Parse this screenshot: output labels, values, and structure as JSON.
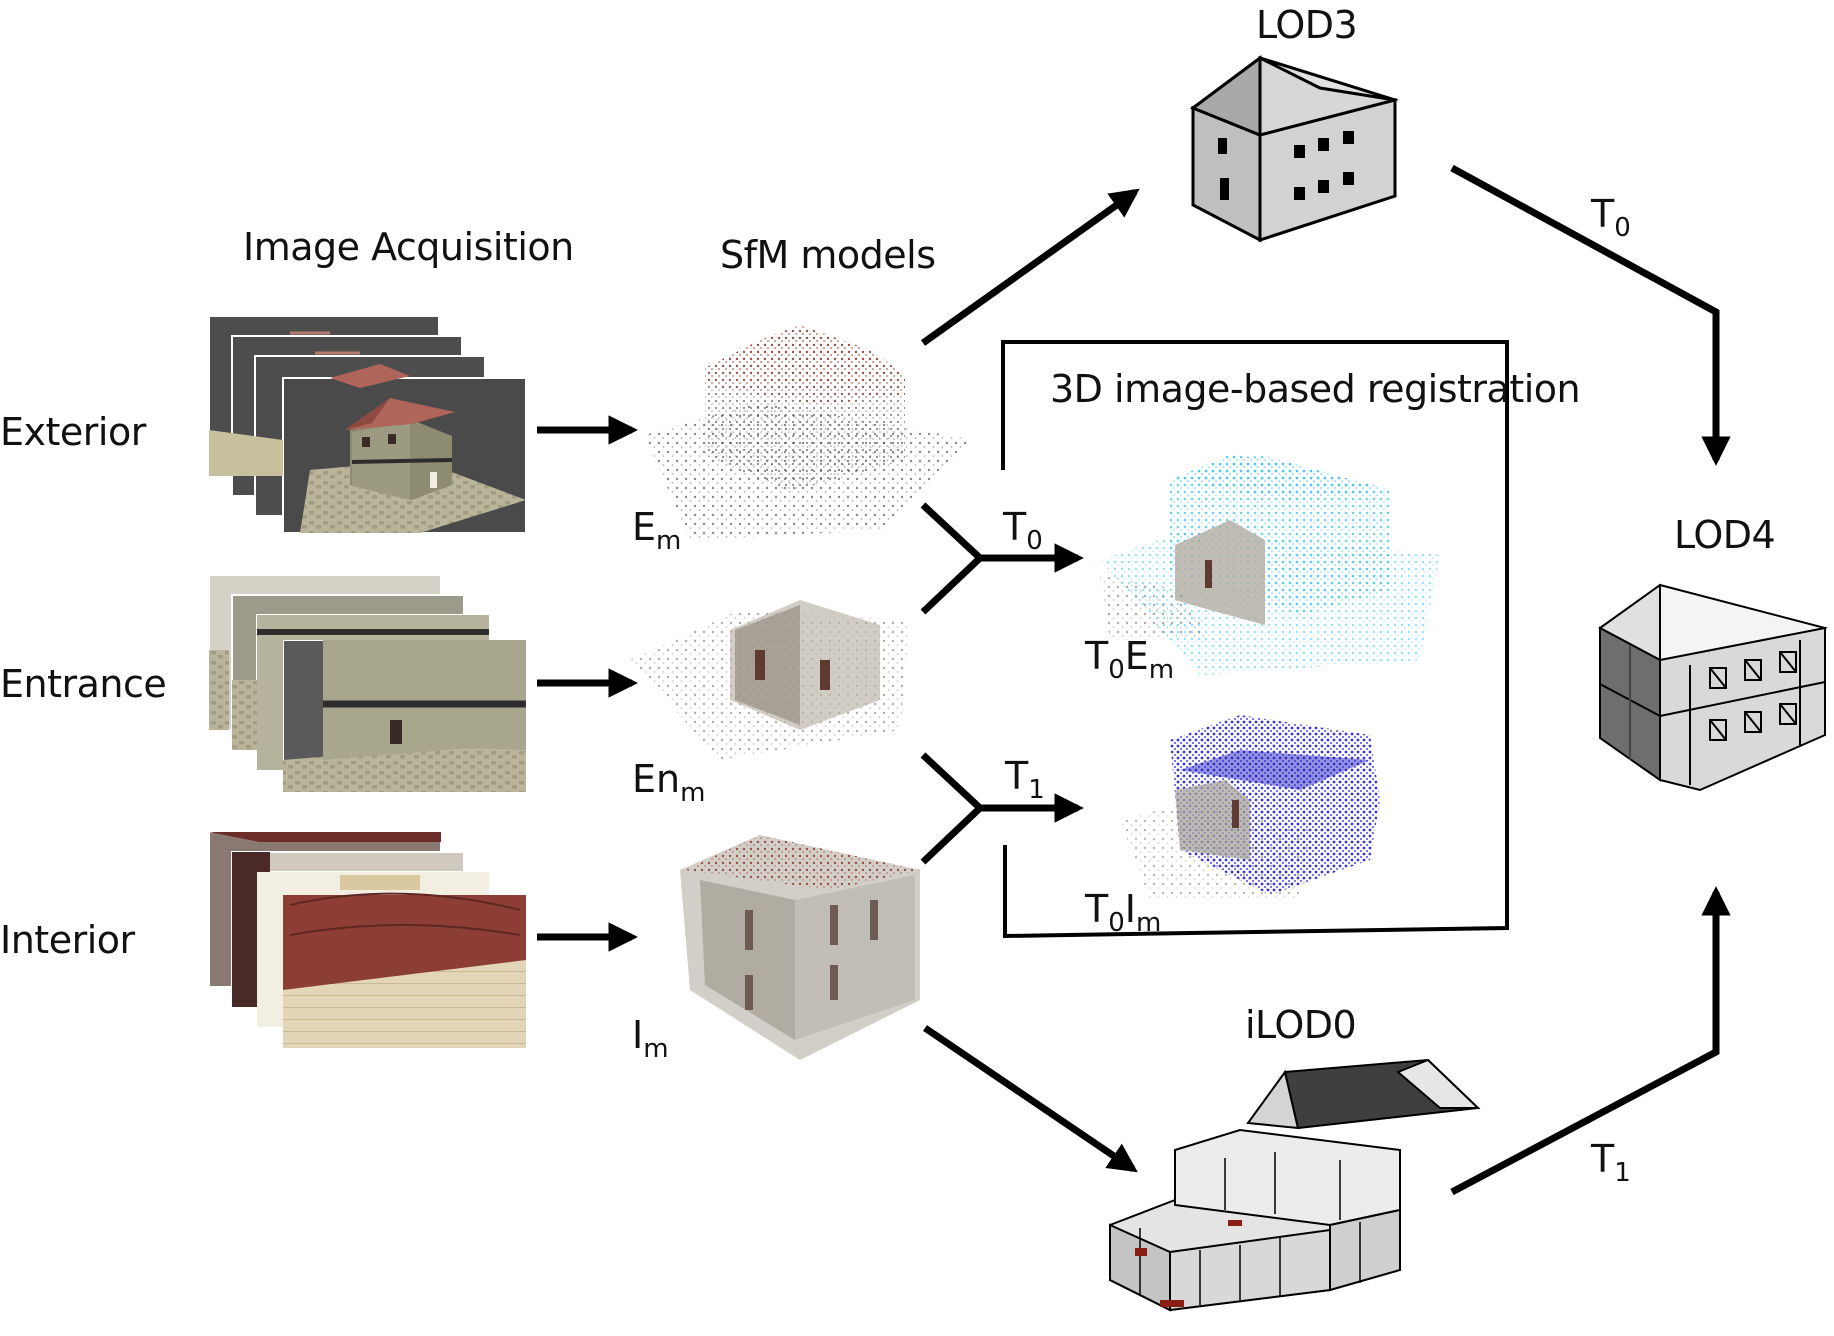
{
  "headings": {
    "image_acquisition": "Image Acquisition",
    "sfm_models": "SfM models",
    "registration": "3D image-based registration",
    "lod3": "LOD3",
    "lod4": "LOD4",
    "ilod0": "iLOD0"
  },
  "rows": {
    "exterior": "Exterior",
    "entrance": "Entrance",
    "interior": "Interior"
  },
  "models": {
    "em": {
      "base": "E",
      "sub": "m"
    },
    "enm": {
      "base": "En",
      "sub": "m"
    },
    "im": {
      "base": "I",
      "sub": "m"
    },
    "t0em_a": {
      "base": "T",
      "sub": "0"
    },
    "t0em_b": {
      "base": "E",
      "sub": "m"
    },
    "t0im_a": {
      "base": "T",
      "sub": "0"
    },
    "t0im_b": {
      "base": "I",
      "sub": "m"
    }
  },
  "transforms": {
    "t0_mid": {
      "base": "T",
      "sub": "0"
    },
    "t1_mid": {
      "base": "T",
      "sub": "1"
    },
    "t0_right": {
      "base": "T",
      "sub": "0"
    },
    "t1_right": {
      "base": "T",
      "sub": "1"
    }
  },
  "colors": {
    "exterior_cloud": "#6fd3f5",
    "interior_cloud": "#4b46e6",
    "roof": "#b0655b",
    "arrow": "#000000"
  }
}
